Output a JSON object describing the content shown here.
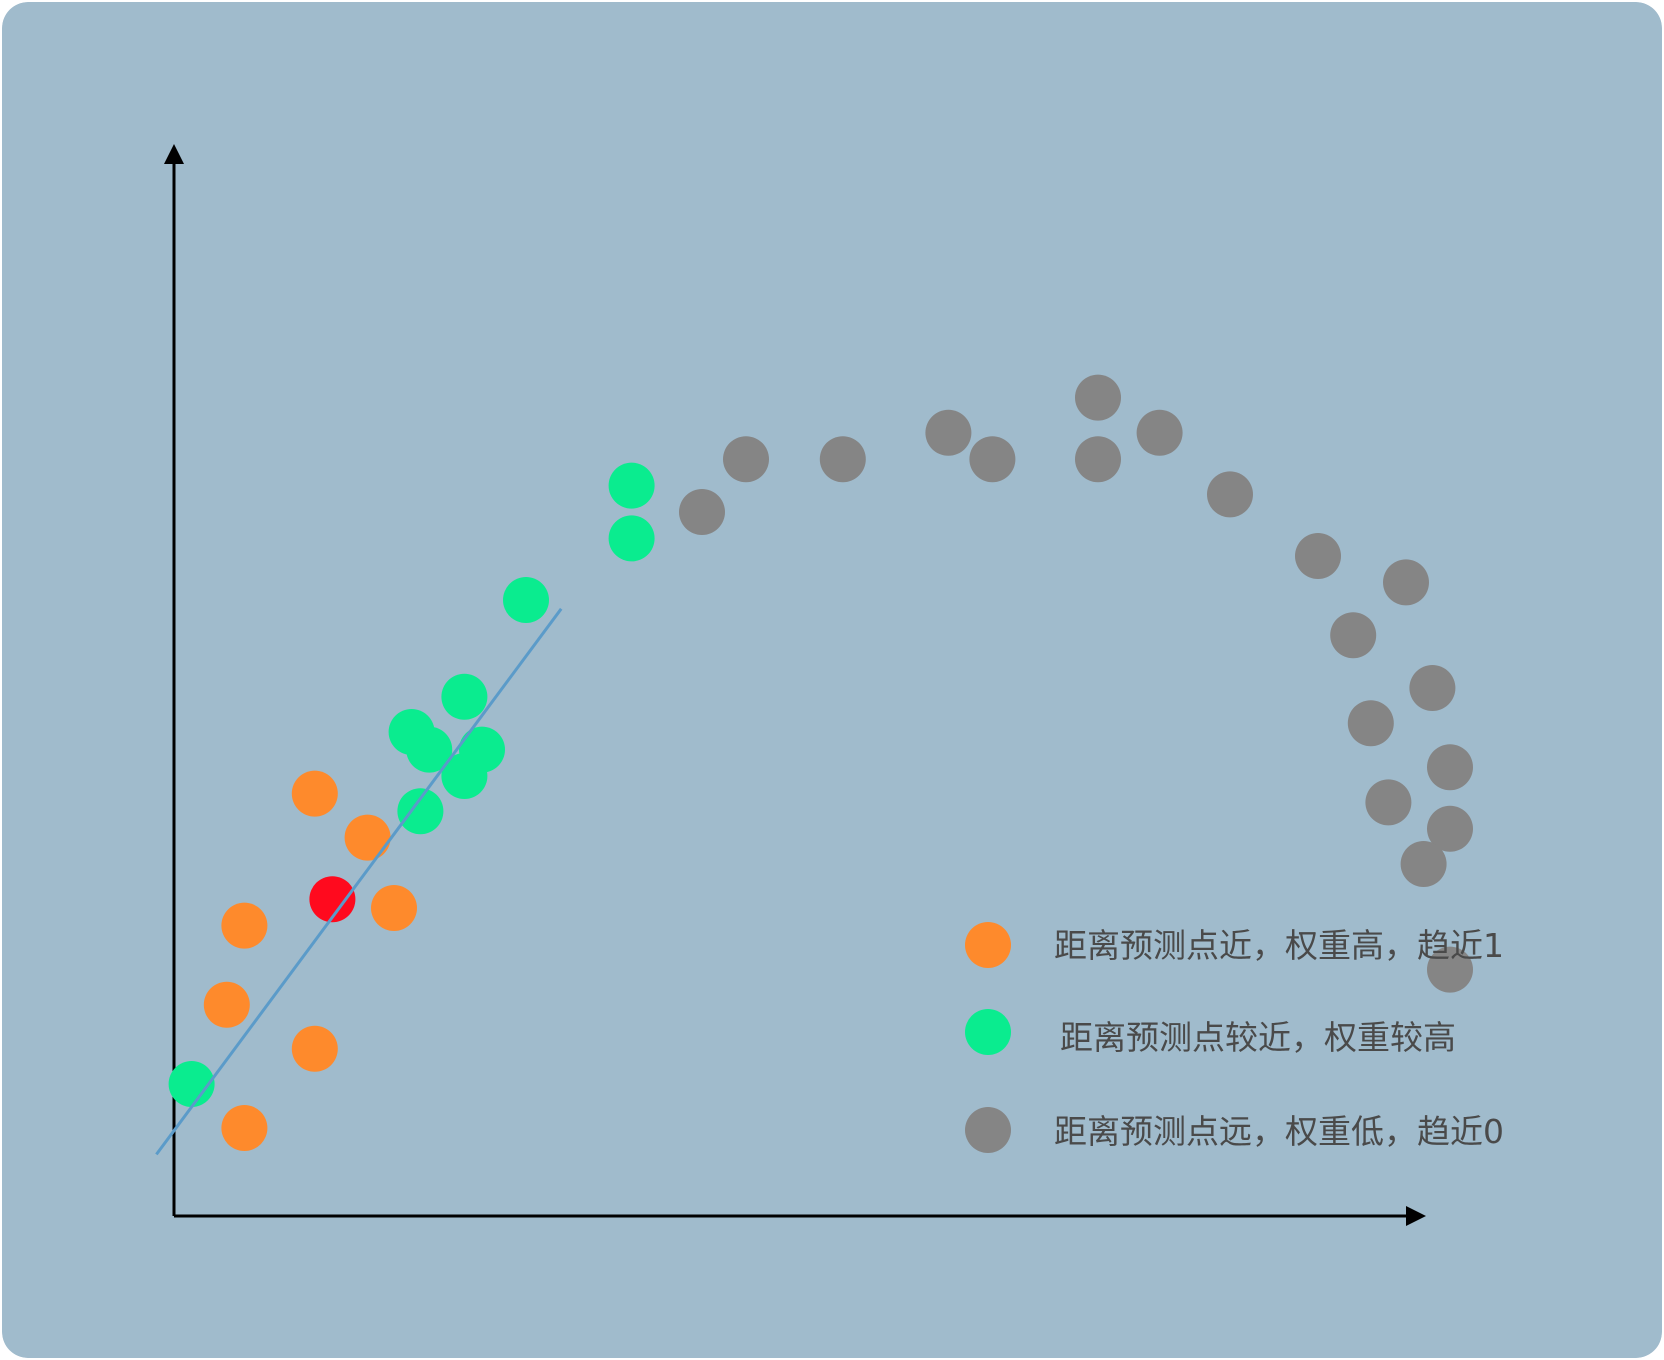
{
  "colors": {
    "background": "#a0bbcc",
    "axis": "#000000",
    "fit_line": "#5b9bc9",
    "query_point": "#ff0a1e",
    "near_point": "#fe8a2c",
    "medium_point": "#0aec8f",
    "far_point": "#858585",
    "legend_text": "#4a4a4a"
  },
  "legend": {
    "near_label": "距离预测点近，权重高，趋近1",
    "medium_label": "距离预测点较近，权重较高",
    "far_label": "距离预测点远，权重低，趋近0"
  },
  "points": {
    "query_point": {
      "x": 1.8,
      "y": 3.6
    },
    "near": [
      {
        "x": 1.6,
        "y": 4.8
      },
      {
        "x": 2.2,
        "y": 4.3
      },
      {
        "x": 2.5,
        "y": 3.5
      },
      {
        "x": 0.8,
        "y": 3.3
      },
      {
        "x": 0.6,
        "y": 2.4
      },
      {
        "x": 1.6,
        "y": 1.9
      },
      {
        "x": 0.8,
        "y": 1.0
      }
    ],
    "medium": [
      {
        "x": 0.2,
        "y": 1.5
      },
      {
        "x": 2.8,
        "y": 4.6
      },
      {
        "x": 2.7,
        "y": 5.5
      },
      {
        "x": 3.3,
        "y": 5.9
      },
      {
        "x": 3.3,
        "y": 5.0
      },
      {
        "x": 3.5,
        "y": 5.3
      },
      {
        "x": 2.9,
        "y": 5.3
      },
      {
        "x": 4.0,
        "y": 7.0
      },
      {
        "x": 5.2,
        "y": 7.7
      },
      {
        "x": 5.2,
        "y": 8.3
      }
    ],
    "far": [
      {
        "x": 6.0,
        "y": 8.0
      },
      {
        "x": 6.5,
        "y": 8.6
      },
      {
        "x": 7.6,
        "y": 8.6
      },
      {
        "x": 8.8,
        "y": 8.9
      },
      {
        "x": 9.3,
        "y": 8.6
      },
      {
        "x": 10.5,
        "y": 9.3
      },
      {
        "x": 10.5,
        "y": 8.6
      },
      {
        "x": 11.2,
        "y": 8.9
      },
      {
        "x": 12.0,
        "y": 8.2
      },
      {
        "x": 13.0,
        "y": 7.5
      },
      {
        "x": 14.0,
        "y": 7.2
      },
      {
        "x": 13.4,
        "y": 6.6
      },
      {
        "x": 13.6,
        "y": 5.6
      },
      {
        "x": 14.3,
        "y": 6.0
      },
      {
        "x": 13.8,
        "y": 4.7
      },
      {
        "x": 14.5,
        "y": 5.1
      },
      {
        "x": 14.5,
        "y": 4.4
      },
      {
        "x": 14.2,
        "y": 4.0
      },
      {
        "x": 14.5,
        "y": 2.8
      }
    ]
  },
  "fit_line": {
    "x1": -0.2,
    "y1": 0.7,
    "x2": 4.4,
    "y2": 6.9
  }
}
